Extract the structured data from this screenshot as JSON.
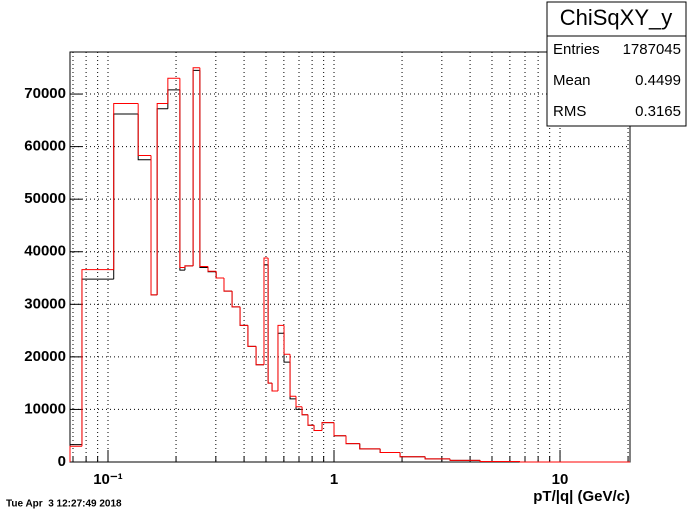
{
  "chart_data": {
    "type": "histogram",
    "title": "ChiSqXY_y",
    "stats": [
      {
        "label": "Entries",
        "value": "1787045"
      },
      {
        "label": "Mean",
        "value": "0.4499"
      },
      {
        "label": "RMS",
        "value": "0.3165"
      }
    ],
    "x_label": "pT/|q| (GeV/c)",
    "timestamp": "Tue Apr  3 12:27:49 2018",
    "log_x": true,
    "grid": true,
    "bins": [
      0.0679,
      0.0767,
      0.106,
      0.136,
      0.155,
      0.165,
      0.184,
      0.208,
      0.219,
      0.238,
      0.255,
      0.277,
      0.301,
      0.326,
      0.354,
      0.384,
      0.416,
      0.452,
      0.49,
      0.511,
      0.532,
      0.565,
      0.601,
      0.639,
      0.679,
      0.722,
      0.767,
      0.816,
      0.885,
      1,
      1.13,
      1.3,
      1.6,
      1.96,
      2.53,
      3.26,
      4.43,
      6.65,
      20.4
    ],
    "series": [
      {
        "color": "#000000",
        "values": [
          3300,
          34800,
          66200,
          57500,
          31800,
          67200,
          70800,
          36500,
          37300,
          74500,
          37000,
          36200,
          35000,
          32500,
          29500,
          26000,
          22000,
          18500,
          37500,
          15000,
          13500,
          24500,
          19000,
          12000,
          10000,
          9000,
          7000,
          6000,
          7500,
          5000,
          3500,
          2500,
          1800,
          1000,
          600,
          300,
          100,
          0
        ]
      },
      {
        "color": "#ff0000",
        "values": [
          3000,
          36600,
          68200,
          58300,
          31800,
          68200,
          73000,
          37000,
          37300,
          75000,
          37200,
          36300,
          35000,
          32500,
          29500,
          26000,
          22000,
          18500,
          38800,
          15000,
          13500,
          26000,
          20500,
          12500,
          10500,
          9000,
          7000,
          6000,
          7500,
          5000,
          3500,
          2500,
          1800,
          1000,
          600,
          300,
          100,
          0
        ]
      }
    ],
    "xlim": [
      0.0679,
      20.4
    ],
    "xticks": [
      {
        "value": 0.1,
        "label": "10⁻¹"
      },
      1,
      10
    ],
    "xminor_ticks": [
      0.07,
      0.08,
      0.09,
      0.2,
      0.3,
      0.4,
      0.5,
      0.6,
      0.7,
      0.8,
      0.9,
      2,
      3,
      4,
      5,
      6,
      7,
      8,
      9,
      20
    ],
    "ylim": [
      0,
      78000
    ],
    "yticks": [
      0,
      10000,
      20000,
      30000,
      40000,
      50000,
      60000,
      70000
    ]
  }
}
